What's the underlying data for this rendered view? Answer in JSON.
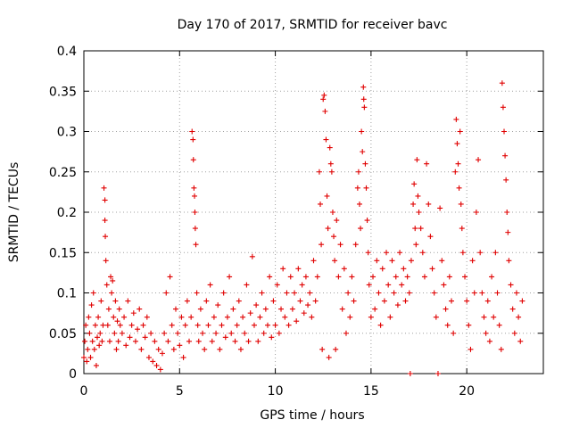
{
  "chart_data": {
    "type": "scatter",
    "title": "Day 170 of 2017, SRMTID for receiver bavc",
    "xlabel": "GPS time / hours",
    "ylabel": "SRMTID / TECUs",
    "xlim": [
      0,
      24
    ],
    "ylim": [
      0,
      0.4
    ],
    "grid": true,
    "marker": "+",
    "color": "#e00000",
    "x_ticks": [
      0,
      5,
      10,
      15,
      20
    ],
    "x_tick_labels": [
      "0",
      "5",
      "10",
      "15",
      "20"
    ],
    "y_ticks": [
      0,
      0.05,
      0.1,
      0.15,
      0.2,
      0.25,
      0.3,
      0.35,
      0.4
    ],
    "y_tick_labels": [
      "0",
      "0.05",
      "0.1",
      "0.15",
      "0.2",
      "0.25",
      "0.3",
      "0.35",
      "0.4"
    ],
    "series": [
      {
        "name": "SRMTID",
        "points": [
          [
            0.0,
            0.02
          ],
          [
            0.05,
            0.04
          ],
          [
            0.1,
            0.06
          ],
          [
            0.15,
            0.015
          ],
          [
            0.2,
            0.03
          ],
          [
            0.25,
            0.07
          ],
          [
            0.3,
            0.05
          ],
          [
            0.35,
            0.02
          ],
          [
            0.4,
            0.085
          ],
          [
            0.45,
            0.04
          ],
          [
            0.5,
            0.1
          ],
          [
            0.55,
            0.03
          ],
          [
            0.6,
            0.06
          ],
          [
            0.65,
            0.01
          ],
          [
            0.7,
            0.045
          ],
          [
            0.75,
            0.07
          ],
          [
            0.8,
            0.035
          ],
          [
            0.85,
            0.05
          ],
          [
            0.9,
            0.09
          ],
          [
            0.95,
            0.04
          ],
          [
            1.0,
            0.06
          ],
          [
            1.05,
            0.23
          ],
          [
            1.1,
            0.215
          ],
          [
            1.1,
            0.19
          ],
          [
            1.12,
            0.17
          ],
          [
            1.15,
            0.14
          ],
          [
            1.2,
            0.11
          ],
          [
            1.25,
            0.06
          ],
          [
            1.3,
            0.08
          ],
          [
            1.35,
            0.04
          ],
          [
            1.4,
            0.12
          ],
          [
            1.45,
            0.1
          ],
          [
            1.5,
            0.115
          ],
          [
            1.55,
            0.07
          ],
          [
            1.6,
            0.05
          ],
          [
            1.65,
            0.09
          ],
          [
            1.7,
            0.03
          ],
          [
            1.75,
            0.065
          ],
          [
            1.8,
            0.04
          ],
          [
            1.85,
            0.08
          ],
          [
            1.9,
            0.06
          ],
          [
            2.0,
            0.05
          ],
          [
            2.1,
            0.07
          ],
          [
            2.2,
            0.035
          ],
          [
            2.3,
            0.09
          ],
          [
            2.4,
            0.045
          ],
          [
            2.5,
            0.06
          ],
          [
            2.6,
            0.075
          ],
          [
            2.7,
            0.04
          ],
          [
            2.8,
            0.055
          ],
          [
            2.9,
            0.08
          ],
          [
            3.0,
            0.03
          ],
          [
            3.1,
            0.06
          ],
          [
            3.2,
            0.045
          ],
          [
            3.3,
            0.07
          ],
          [
            3.4,
            0.02
          ],
          [
            3.5,
            0.05
          ],
          [
            3.6,
            0.015
          ],
          [
            3.7,
            0.04
          ],
          [
            3.8,
            0.01
          ],
          [
            3.9,
            0.03
          ],
          [
            4.0,
            0.005
          ],
          [
            4.1,
            0.025
          ],
          [
            4.2,
            0.05
          ],
          [
            4.3,
            0.1
          ],
          [
            4.4,
            0.04
          ],
          [
            4.5,
            0.12
          ],
          [
            4.6,
            0.06
          ],
          [
            4.7,
            0.03
          ],
          [
            4.8,
            0.08
          ],
          [
            4.9,
            0.05
          ],
          [
            5.0,
            0.035
          ],
          [
            5.1,
            0.07
          ],
          [
            5.2,
            0.02
          ],
          [
            5.3,
            0.06
          ],
          [
            5.4,
            0.09
          ],
          [
            5.5,
            0.04
          ],
          [
            5.6,
            0.07
          ],
          [
            5.65,
            0.3
          ],
          [
            5.7,
            0.29
          ],
          [
            5.72,
            0.265
          ],
          [
            5.75,
            0.23
          ],
          [
            5.78,
            0.22
          ],
          [
            5.8,
            0.2
          ],
          [
            5.82,
            0.18
          ],
          [
            5.85,
            0.16
          ],
          [
            5.9,
            0.1
          ],
          [
            5.95,
            0.06
          ],
          [
            6.0,
            0.04
          ],
          [
            6.1,
            0.08
          ],
          [
            6.2,
            0.05
          ],
          [
            6.3,
            0.03
          ],
          [
            6.4,
            0.09
          ],
          [
            6.5,
            0.06
          ],
          [
            6.6,
            0.11
          ],
          [
            6.7,
            0.04
          ],
          [
            6.8,
            0.07
          ],
          [
            6.9,
            0.05
          ],
          [
            7.0,
            0.085
          ],
          [
            7.1,
            0.03
          ],
          [
            7.2,
            0.06
          ],
          [
            7.3,
            0.1
          ],
          [
            7.4,
            0.045
          ],
          [
            7.5,
            0.07
          ],
          [
            7.6,
            0.12
          ],
          [
            7.7,
            0.05
          ],
          [
            7.8,
            0.08
          ],
          [
            7.9,
            0.04
          ],
          [
            8.0,
            0.06
          ],
          [
            8.1,
            0.09
          ],
          [
            8.2,
            0.03
          ],
          [
            8.3,
            0.07
          ],
          [
            8.4,
            0.05
          ],
          [
            8.5,
            0.11
          ],
          [
            8.6,
            0.04
          ],
          [
            8.7,
            0.075
          ],
          [
            8.8,
            0.145
          ],
          [
            8.9,
            0.06
          ],
          [
            9.0,
            0.085
          ],
          [
            9.1,
            0.04
          ],
          [
            9.2,
            0.07
          ],
          [
            9.3,
            0.1
          ],
          [
            9.4,
            0.05
          ],
          [
            9.5,
            0.08
          ],
          [
            9.6,
            0.06
          ],
          [
            9.7,
            0.12
          ],
          [
            9.8,
            0.045
          ],
          [
            9.9,
            0.09
          ],
          [
            10.0,
            0.06
          ],
          [
            10.1,
            0.11
          ],
          [
            10.2,
            0.05
          ],
          [
            10.3,
            0.08
          ],
          [
            10.4,
            0.13
          ],
          [
            10.5,
            0.07
          ],
          [
            10.6,
            0.1
          ],
          [
            10.7,
            0.06
          ],
          [
            10.8,
            0.12
          ],
          [
            10.9,
            0.08
          ],
          [
            11.0,
            0.1
          ],
          [
            11.1,
            0.065
          ],
          [
            11.2,
            0.13
          ],
          [
            11.3,
            0.09
          ],
          [
            11.4,
            0.11
          ],
          [
            11.5,
            0.075
          ],
          [
            11.6,
            0.12
          ],
          [
            11.7,
            0.085
          ],
          [
            11.8,
            0.1
          ],
          [
            11.9,
            0.07
          ],
          [
            12.0,
            0.14
          ],
          [
            12.1,
            0.09
          ],
          [
            12.2,
            0.12
          ],
          [
            12.3,
            0.25
          ],
          [
            12.35,
            0.21
          ],
          [
            12.4,
            0.16
          ],
          [
            12.45,
            0.03
          ],
          [
            12.5,
            0.34
          ],
          [
            12.55,
            0.345
          ],
          [
            12.6,
            0.325
          ],
          [
            12.65,
            0.29
          ],
          [
            12.7,
            0.22
          ],
          [
            12.75,
            0.18
          ],
          [
            12.8,
            0.02
          ],
          [
            12.85,
            0.28
          ],
          [
            12.9,
            0.26
          ],
          [
            12.95,
            0.25
          ],
          [
            13.0,
            0.2
          ],
          [
            13.05,
            0.17
          ],
          [
            13.1,
            0.14
          ],
          [
            13.15,
            0.03
          ],
          [
            13.2,
            0.19
          ],
          [
            13.3,
            0.12
          ],
          [
            13.4,
            0.16
          ],
          [
            13.5,
            0.08
          ],
          [
            13.6,
            0.13
          ],
          [
            13.7,
            0.05
          ],
          [
            13.8,
            0.1
          ],
          [
            13.9,
            0.07
          ],
          [
            14.0,
            0.12
          ],
          [
            14.1,
            0.09
          ],
          [
            14.2,
            0.16
          ],
          [
            14.3,
            0.23
          ],
          [
            14.35,
            0.25
          ],
          [
            14.4,
            0.21
          ],
          [
            14.45,
            0.18
          ],
          [
            14.5,
            0.3
          ],
          [
            14.55,
            0.275
          ],
          [
            14.6,
            0.355
          ],
          [
            14.62,
            0.34
          ],
          [
            14.65,
            0.33
          ],
          [
            14.7,
            0.26
          ],
          [
            14.75,
            0.23
          ],
          [
            14.8,
            0.19
          ],
          [
            14.85,
            0.15
          ],
          [
            14.9,
            0.11
          ],
          [
            15.0,
            0.07
          ],
          [
            15.1,
            0.12
          ],
          [
            15.2,
            0.08
          ],
          [
            15.3,
            0.14
          ],
          [
            15.4,
            0.1
          ],
          [
            15.5,
            0.06
          ],
          [
            15.6,
            0.13
          ],
          [
            15.7,
            0.09
          ],
          [
            15.8,
            0.15
          ],
          [
            15.9,
            0.11
          ],
          [
            16.0,
            0.07
          ],
          [
            16.1,
            0.14
          ],
          [
            16.2,
            0.1
          ],
          [
            16.3,
            0.12
          ],
          [
            16.4,
            0.085
          ],
          [
            16.5,
            0.15
          ],
          [
            16.6,
            0.11
          ],
          [
            16.7,
            0.13
          ],
          [
            16.8,
            0.09
          ],
          [
            16.9,
            0.12
          ],
          [
            17.0,
            0.1
          ],
          [
            17.05,
            0.0
          ],
          [
            17.1,
            0.14
          ],
          [
            17.2,
            0.21
          ],
          [
            17.25,
            0.235
          ],
          [
            17.3,
            0.18
          ],
          [
            17.35,
            0.16
          ],
          [
            17.4,
            0.265
          ],
          [
            17.45,
            0.22
          ],
          [
            17.5,
            0.2
          ],
          [
            17.6,
            0.18
          ],
          [
            17.7,
            0.15
          ],
          [
            17.8,
            0.12
          ],
          [
            17.9,
            0.26
          ],
          [
            18.0,
            0.21
          ],
          [
            18.1,
            0.17
          ],
          [
            18.2,
            0.13
          ],
          [
            18.3,
            0.1
          ],
          [
            18.4,
            0.07
          ],
          [
            18.5,
            0.0
          ],
          [
            18.6,
            0.205
          ],
          [
            18.7,
            0.14
          ],
          [
            18.8,
            0.11
          ],
          [
            18.9,
            0.08
          ],
          [
            19.0,
            0.06
          ],
          [
            19.1,
            0.12
          ],
          [
            19.2,
            0.09
          ],
          [
            19.3,
            0.05
          ],
          [
            19.4,
            0.25
          ],
          [
            19.45,
            0.315
          ],
          [
            19.5,
            0.285
          ],
          [
            19.55,
            0.26
          ],
          [
            19.6,
            0.23
          ],
          [
            19.65,
            0.3
          ],
          [
            19.7,
            0.21
          ],
          [
            19.75,
            0.18
          ],
          [
            19.8,
            0.15
          ],
          [
            19.9,
            0.12
          ],
          [
            20.0,
            0.09
          ],
          [
            20.1,
            0.06
          ],
          [
            20.2,
            0.03
          ],
          [
            20.3,
            0.14
          ],
          [
            20.4,
            0.1
          ],
          [
            20.5,
            0.2
          ],
          [
            20.6,
            0.265
          ],
          [
            20.7,
            0.15
          ],
          [
            20.8,
            0.1
          ],
          [
            20.9,
            0.07
          ],
          [
            21.0,
            0.05
          ],
          [
            21.1,
            0.09
          ],
          [
            21.2,
            0.04
          ],
          [
            21.3,
            0.12
          ],
          [
            21.4,
            0.07
          ],
          [
            21.5,
            0.15
          ],
          [
            21.6,
            0.1
          ],
          [
            21.7,
            0.06
          ],
          [
            21.8,
            0.03
          ],
          [
            21.85,
            0.36
          ],
          [
            21.9,
            0.33
          ],
          [
            21.95,
            0.3
          ],
          [
            22.0,
            0.27
          ],
          [
            22.05,
            0.24
          ],
          [
            22.1,
            0.2
          ],
          [
            22.15,
            0.175
          ],
          [
            22.2,
            0.14
          ],
          [
            22.3,
            0.11
          ],
          [
            22.4,
            0.08
          ],
          [
            22.5,
            0.05
          ],
          [
            22.6,
            0.1
          ],
          [
            22.7,
            0.07
          ],
          [
            22.8,
            0.04
          ],
          [
            22.9,
            0.09
          ]
        ]
      }
    ]
  }
}
